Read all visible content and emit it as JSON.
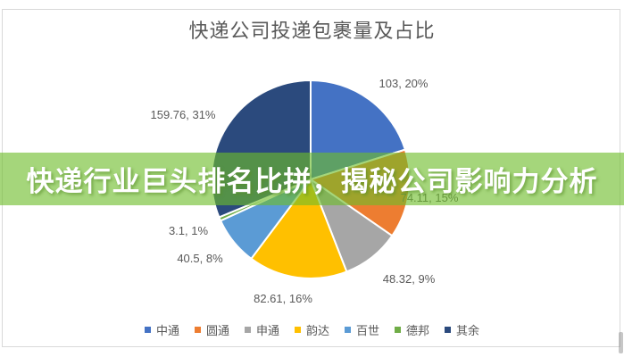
{
  "overlay": {
    "text": "快递行业巨头排名比拼，揭秘公司影响力分析",
    "text_color": "#FFFFFF",
    "background_color": "#6EBD2A"
  },
  "chart_data": {
    "type": "pie",
    "title": "快递公司投递包裹量及占比",
    "categories": [
      "中通",
      "圆通",
      "申通",
      "韵达",
      "百世",
      "德邦",
      "其余"
    ],
    "values": [
      103,
      74.11,
      48.32,
      82.61,
      40.5,
      3.1,
      159.76
    ],
    "data_labels": [
      "103, 20%",
      "74.11, 15%",
      "48.32, 9%",
      "82.61, 16%",
      "40.5, 8%",
      "3.1, 1%",
      "159.76, 31%"
    ],
    "colors": [
      "#4472C4",
      "#ED7D31",
      "#A6A6A6",
      "#FFC000",
      "#5B9BD5",
      "#70AD47",
      "#2B4A7D"
    ],
    "start_angle_deg": 0,
    "direction": "clockwise",
    "legend_position": "bottom",
    "label_color": "#595959",
    "slice_border_color": "#FFFFFF"
  }
}
